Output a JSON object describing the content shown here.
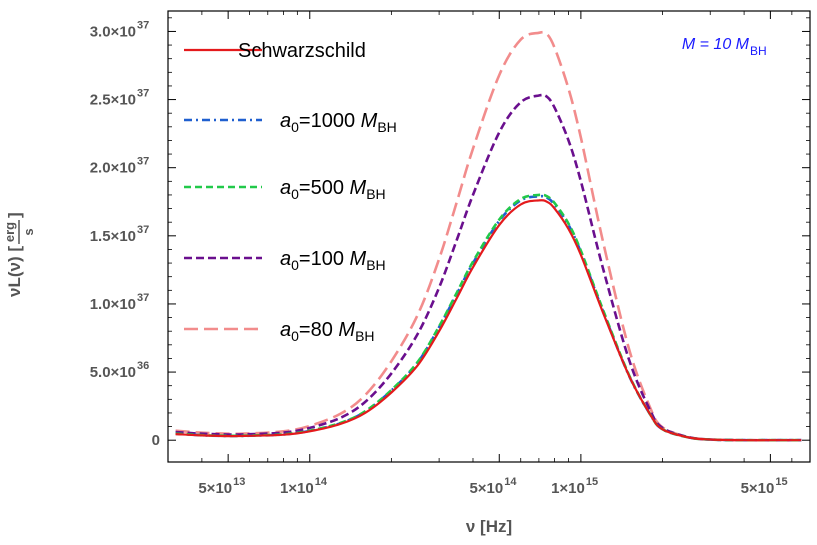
{
  "chart_data": {
    "type": "line",
    "x_scale": "log",
    "xlim": [
      30000000000000.0,
      7000000000000000.0
    ],
    "ylim": [
      -1.6e+36,
      3.15e+37
    ],
    "xlabel": "ν [Hz]",
    "ylabel": "νL(ν) [erg/s]",
    "ylabel_parts": {
      "prefix": "νL(ν) [",
      "num": "erg",
      "den": "s",
      "suffix": "]"
    },
    "annotation": {
      "base": "M = 10 M",
      "sub": "BH",
      "color": "#1a1aff"
    },
    "x_ticks": [
      {
        "value": 50000000000000.0,
        "label": "5×10",
        "exp": "13"
      },
      {
        "value": 100000000000000.0,
        "label": "1×10",
        "exp": "14"
      },
      {
        "value": 500000000000000.0,
        "label": "5×10",
        "exp": "14"
      },
      {
        "value": 1000000000000000.0,
        "label": "1×10",
        "exp": "15"
      },
      {
        "value": 5000000000000000.0,
        "label": "5×10",
        "exp": "15"
      }
    ],
    "y_ticks": [
      {
        "value": 0,
        "label": "0",
        "exp": ""
      },
      {
        "value": 5e+36,
        "label": "5.0×10",
        "exp": "36"
      },
      {
        "value": 1e+37,
        "label": "1.0×10",
        "exp": "37"
      },
      {
        "value": 1.5e+37,
        "label": "1.5×10",
        "exp": "37"
      },
      {
        "value": 2e+37,
        "label": "2.0×10",
        "exp": "37"
      },
      {
        "value": 2.5e+37,
        "label": "2.5×10",
        "exp": "37"
      },
      {
        "value": 3e+37,
        "label": "3.0×10",
        "exp": "37"
      }
    ],
    "x": [
      32000000000000.0,
      40000000000000.0,
      50000000000000.0,
      60000000000000.0,
      80000000000000.0,
      100000000000000.0,
      130000000000000.0,
      160000000000000.0,
      200000000000000.0,
      250000000000000.0,
      300000000000000.0,
      350000000000000.0,
      400000000000000.0,
      500000000000000.0,
      600000000000000.0,
      700000000000000.0,
      750000000000000.0,
      800000000000000.0,
      900000000000000.0,
      1000000000000000.0,
      1200000000000000.0,
      1500000000000000.0,
      1800000000000000.0,
      2000000000000000.0,
      2500000000000000.0,
      3000000000000000.0,
      4000000000000000.0,
      5000000000000000.0,
      6500000000000000.0
    ],
    "series": [
      {
        "name": "Schwarzschild",
        "legend_base": "Schwarzschild",
        "legend_sub": "",
        "color": "#e41a1c",
        "dash": "",
        "width": 2.2,
        "values": [
          4.5e+35,
          3.5e+35,
          3e+35,
          3.2e+35,
          4e+35,
          6.5e+35,
          1.2e+36,
          2e+36,
          3.5e+36,
          5.5e+36,
          8e+36,
          1.05e+37,
          1.27e+37,
          1.58e+37,
          1.73e+37,
          1.76e+37,
          1.75e+37,
          1.7e+37,
          1.55e+37,
          1.36e+37,
          9.5e+36,
          4.8e+36,
          1.9e+36,
          8e+35,
          2e+35,
          5e+34,
          0,
          0,
          0
        ]
      },
      {
        "name": "a0=1000 MBH",
        "legend_base": "a",
        "legend_sub": "0",
        "legend_rest": "=1000 M",
        "legend_sub2": "BH",
        "color": "#1f5fcf",
        "dash": "8 4 2 4",
        "width": 2.6,
        "values": [
          4.7e+35,
          3.6e+35,
          3.1e+35,
          3.3e+35,
          4.2e+35,
          6.8e+35,
          1.25e+36,
          2.1e+36,
          3.65e+36,
          5.7e+36,
          8.3e+36,
          1.08e+37,
          1.3e+37,
          1.61e+37,
          1.76e+37,
          1.79e+37,
          1.78e+37,
          1.73e+37,
          1.58e+37,
          1.38e+37,
          9.6e+36,
          4.8e+36,
          1.9e+36,
          8e+35,
          2e+35,
          5e+34,
          0,
          0,
          0
        ]
      },
      {
        "name": "a0=500 MBH",
        "legend_base": "a",
        "legend_sub": "0",
        "legend_rest": "=500 M",
        "legend_sub2": "BH",
        "color": "#22c94a",
        "dash": "7 4",
        "width": 2.6,
        "values": [
          4.8e+35,
          3.7e+35,
          3.2e+35,
          3.4e+35,
          4.3e+35,
          7e+35,
          1.27e+36,
          2.12e+36,
          3.68e+36,
          5.75e+36,
          8.35e+36,
          1.09e+37,
          1.31e+37,
          1.62e+37,
          1.77e+37,
          1.8e+37,
          1.79e+37,
          1.74e+37,
          1.59e+37,
          1.39e+37,
          9.7e+36,
          4.85e+36,
          1.9e+36,
          8e+35,
          2e+35,
          5e+34,
          0,
          0,
          0
        ]
      },
      {
        "name": "a0=100 MBH",
        "legend_base": "a",
        "legend_sub": "0",
        "legend_rest": "=100 M",
        "legend_sub2": "BH",
        "color": "#6a0f8e",
        "dash": "8 4",
        "width": 2.6,
        "values": [
          6e+35,
          4.8e+35,
          4.2e+35,
          4.4e+35,
          5.6e+35,
          9e+35,
          1.65e+36,
          2.8e+36,
          4.9e+36,
          7.8e+36,
          1.12e+37,
          1.48e+37,
          1.8e+37,
          2.26e+37,
          2.48e+37,
          2.53e+37,
          2.52e+37,
          2.44e+37,
          2.2e+37,
          1.9e+37,
          1.28e+37,
          6e+36,
          2.2e+36,
          9e+35,
          2.2e+35,
          5e+34,
          0,
          0,
          0
        ]
      },
      {
        "name": "a0=80 MBH",
        "legend_base": "a",
        "legend_sub": "0",
        "legend_rest": "=80 M",
        "legend_sub2": "BH",
        "color": "#f28c8c",
        "dash": "14 6",
        "width": 2.6,
        "values": [
          7e+35,
          5.5e+35,
          4.8e+35,
          5e+35,
          6.5e+35,
          1.05e+36,
          1.95e+36,
          3.3e+36,
          5.8e+36,
          9.2e+36,
          1.33e+37,
          1.76e+37,
          2.14e+37,
          2.68e+37,
          2.94e+37,
          2.99e+37,
          2.98e+37,
          2.88e+37,
          2.58e+37,
          2.22e+37,
          1.48e+37,
          6.8e+36,
          2.4e+36,
          9.5e+35,
          2.2e+35,
          5e+34,
          0,
          0,
          0
        ]
      }
    ]
  }
}
